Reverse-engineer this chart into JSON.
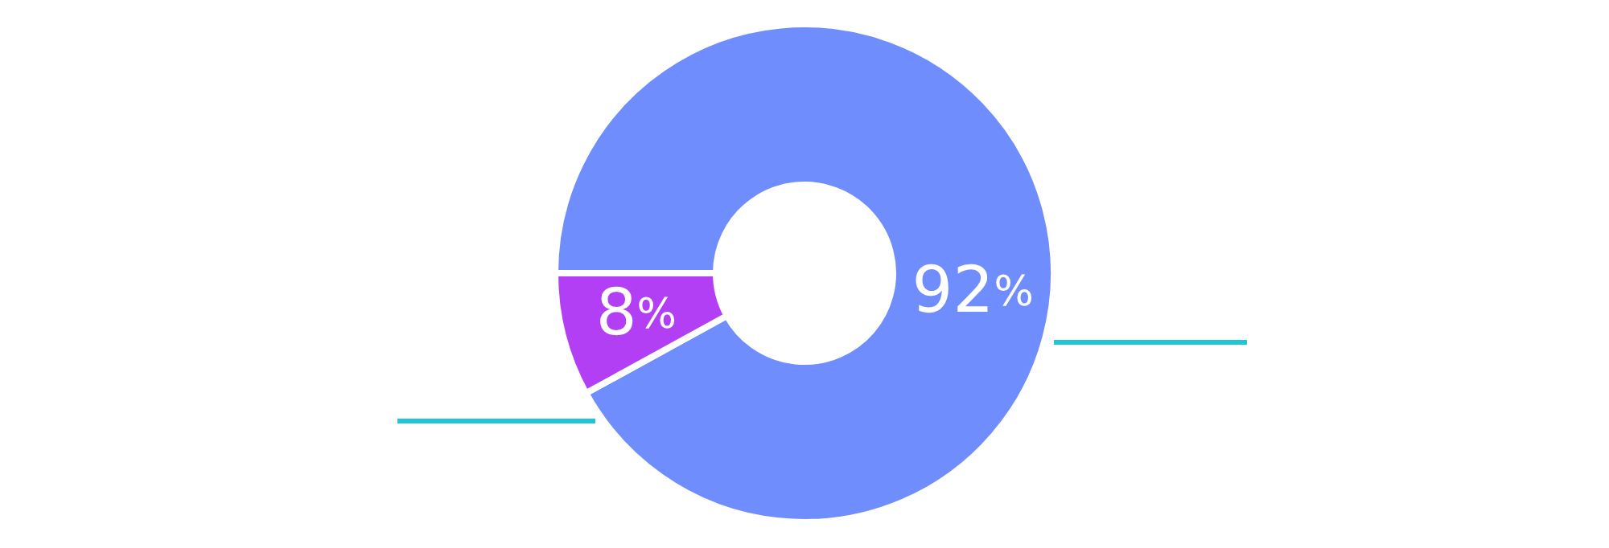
{
  "chart_data": {
    "type": "donut",
    "categories": [
      null,
      null
    ],
    "values": [
      92,
      8
    ],
    "colors": [
      "#6f8dfd",
      "#b23ff4"
    ],
    "value_labels": [
      "92%",
      "8%"
    ]
  }
}
